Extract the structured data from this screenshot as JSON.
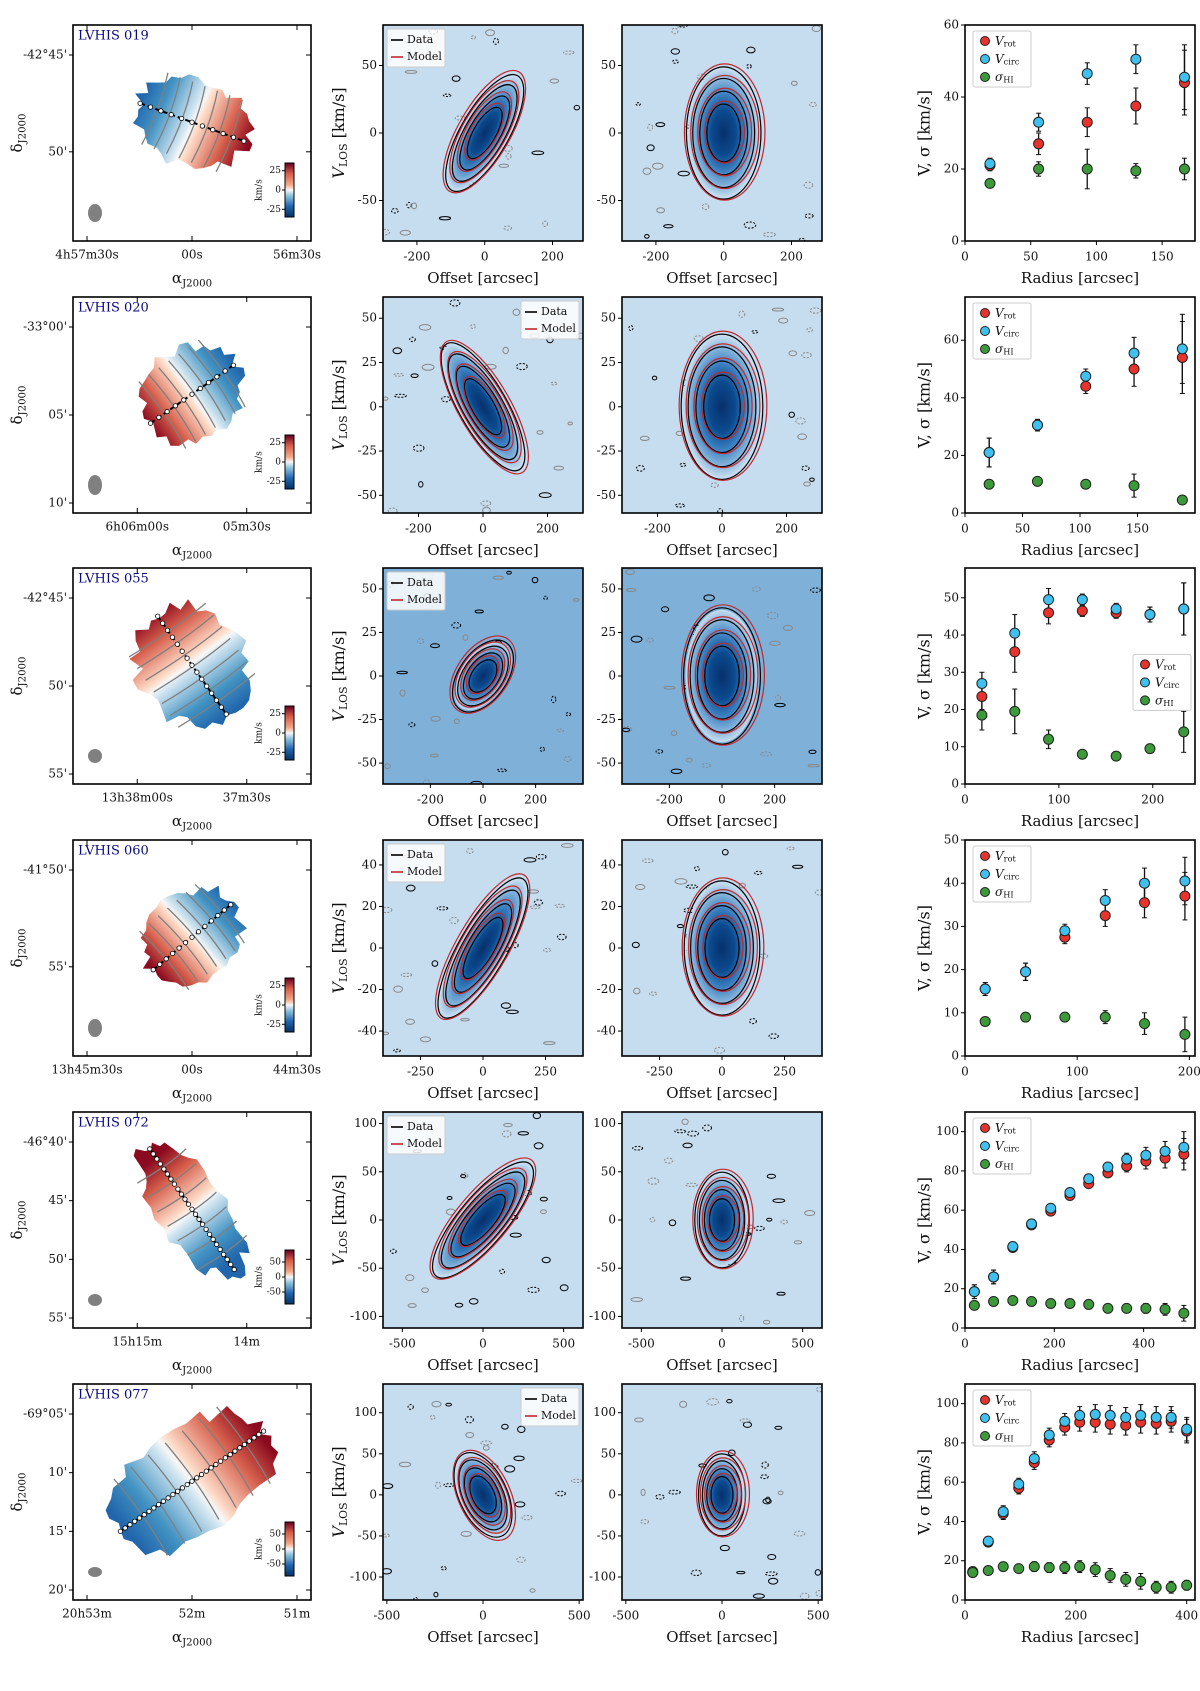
{
  "figure": {
    "colors": {
      "vrot": "#e8322c",
      "vcirc": "#3fc0ee",
      "sigma": "#3c9a3a",
      "data_contour": "#000000",
      "model_contour": "#c0272d",
      "label_blue": "#0a0a80",
      "map_red": "#b2182b",
      "map_blue": "#2166ac",
      "pv_bg": "#c6dcef",
      "pv_core": "#08306b",
      "beam": "#808080"
    },
    "common": {
      "pv_ylabel": "V_LOS [km/s]",
      "pv_xlabel": "Offset [arcsec]",
      "rc_ylabel": "V, σ [km/s]",
      "rc_xlabel": "Radius [arcsec]",
      "map_xlabel": "α_J2000",
      "map_ylabel": "δ_J2000",
      "colorbar_unit": "km/s",
      "legend_pv": [
        "Data",
        "Model"
      ],
      "legend_rc": [
        "V_rot",
        "V_circ",
        "σ_HI"
      ]
    }
  },
  "chart_data": [
    {
      "type": "scatter",
      "galaxy": "LVHIS 019",
      "velocity_map": {
        "ra_ticks": [
          "4h57m30s",
          "00s",
          "56m30s"
        ],
        "dec_ticks": [
          "-42°45'",
          "50'"
        ],
        "colorbar_ticks": [
          "25",
          "0",
          "-25"
        ],
        "colorbar_range": [
          -35,
          35
        ]
      },
      "pv_major": {
        "xlim": [
          -300,
          290
        ],
        "ylim": [
          -80,
          80
        ],
        "xticks": [
          "-200",
          "0",
          "200"
        ],
        "yticks": [
          "-50",
          "0",
          "50"
        ],
        "legend": "top-left",
        "slope_deg": 60,
        "extent": [
          80,
          60
        ]
      },
      "pv_minor": {
        "xlim": [
          -300,
          290
        ],
        "ylim": [
          -80,
          80
        ],
        "xticks": [
          "-200",
          "0",
          "200"
        ],
        "yticks": [
          "-50",
          "0",
          "50"
        ],
        "extent": [
          90,
          50
        ]
      },
      "rotation_curve": {
        "xlim": [
          0,
          175
        ],
        "ylim": [
          0,
          60
        ],
        "xticks": [
          "0",
          "50",
          "100",
          "150"
        ],
        "yticks": [
          "0",
          "20",
          "40",
          "60"
        ],
        "legend": "top-left",
        "radius": [
          19,
          56,
          93,
          130,
          167
        ],
        "series": [
          {
            "name": "V_rot",
            "values": [
              21,
              27,
              33,
              37.5,
              44
            ],
            "err": [
              1.5,
              3,
              4,
              5,
              9
            ]
          },
          {
            "name": "V_circ",
            "values": [
              21.5,
              33,
              46.5,
              50.5,
              45.5
            ],
            "err": [
              1.5,
              2.5,
              3,
              4,
              9
            ]
          },
          {
            "name": "σ_HI",
            "values": [
              16,
              20,
              20,
              19.5,
              20
            ],
            "err": [
              0.5,
              2,
              5.5,
              2,
              3
            ]
          }
        ]
      }
    },
    {
      "type": "scatter",
      "galaxy": "LVHIS 020",
      "velocity_map": {
        "ra_ticks": [
          "6h06m00s",
          "05m30s"
        ],
        "dec_ticks": [
          "-33°00'",
          "05'",
          "10'"
        ],
        "colorbar_ticks": [
          "25",
          "0",
          "-25"
        ],
        "colorbar_range": [
          -35,
          35
        ]
      },
      "pv_major": {
        "xlim": [
          -310,
          310
        ],
        "ylim": [
          -60,
          62
        ],
        "xticks": [
          "-200",
          "0",
          "200"
        ],
        "yticks": [
          "-50",
          "-25",
          "0",
          "25",
          "50"
        ],
        "legend": "top-right",
        "slope_deg": -60,
        "extent": [
          100,
          50
        ]
      },
      "pv_minor": {
        "xlim": [
          -310,
          310
        ],
        "ylim": [
          -60,
          62
        ],
        "xticks": [
          "-200",
          "0",
          "200"
        ],
        "yticks": [
          "-50",
          "-25",
          "0",
          "25",
          "50"
        ],
        "extent": [
          130,
          42
        ]
      },
      "rotation_curve": {
        "xlim": [
          0,
          200
        ],
        "ylim": [
          0,
          75
        ],
        "xticks": [
          "0",
          "50",
          "100",
          "150"
        ],
        "yticks": [
          "0",
          "20",
          "40",
          "60"
        ],
        "legend": "top-left",
        "radius": [
          21,
          63,
          105,
          147,
          189
        ],
        "series": [
          {
            "name": "V_rot",
            "values": [
              21,
              30.5,
              44,
              50,
              54
            ],
            "err": [
              5,
              2,
              2.5,
              6,
              12.5
            ]
          },
          {
            "name": "V_circ",
            "values": [
              21,
              30.5,
              47.5,
              55.5,
              57
            ],
            "err": [
              5,
              2,
              2.5,
              5.5,
              12
            ]
          },
          {
            "name": "σ_HI",
            "values": [
              10,
              11,
              10,
              9.5,
              4.5
            ],
            "err": [
              0.5,
              0.5,
              0.5,
              4,
              0.5
            ]
          }
        ]
      }
    },
    {
      "type": "scatter",
      "galaxy": "LVHIS 055",
      "velocity_map": {
        "ra_ticks": [
          "13h38m00s",
          "37m30s"
        ],
        "dec_ticks": [
          "-42°45'",
          "50'",
          "55'"
        ],
        "colorbar_ticks": [
          "25",
          "0",
          "-25"
        ],
        "colorbar_range": [
          -35,
          35
        ]
      },
      "pv_major": {
        "xlim": [
          -380,
          380
        ],
        "ylim": [
          -62,
          62
        ],
        "xticks": [
          "-200",
          "0",
          "200"
        ],
        "yticks": [
          "-50",
          "-25",
          "0",
          "25",
          "50"
        ],
        "legend": "top-left",
        "slope_deg": 55,
        "extent": [
          130,
          22
        ]
      },
      "pv_minor": {
        "xlim": [
          -380,
          380
        ],
        "ylim": [
          -62,
          62
        ],
        "xticks": [
          "-200",
          "0",
          "200"
        ],
        "yticks": [
          "-50",
          "-25",
          "0",
          "25",
          "50"
        ],
        "extent": [
          110,
          40
        ]
      },
      "rotation_curve": {
        "xlim": [
          0,
          245
        ],
        "ylim": [
          0,
          58
        ],
        "xticks": [
          "0",
          "100",
          "200"
        ],
        "yticks": [
          "0",
          "10",
          "20",
          "30",
          "40",
          "50"
        ],
        "legend": "center-right",
        "radius": [
          18,
          53,
          89,
          125,
          161,
          197,
          233
        ],
        "series": [
          {
            "name": "V_rot",
            "values": [
              23.5,
              35.5,
              46,
              46.5,
              46,
              45.5,
              47
            ],
            "err": [
              3.5,
              5.5,
              3,
              1.5,
              1.5,
              2,
              7
            ]
          },
          {
            "name": "V_circ",
            "values": [
              27,
              40.5,
              49.5,
              49.5,
              47,
              45.5,
              47
            ],
            "err": [
              3,
              5,
              3,
              1.5,
              1.5,
              2,
              7
            ]
          },
          {
            "name": "σ_HI",
            "values": [
              18.5,
              19.5,
              12,
              8,
              7.5,
              9.5,
              14
            ],
            "err": [
              4,
              6,
              2.5,
              1,
              0.5,
              1,
              5.5
            ]
          }
        ]
      }
    },
    {
      "type": "scatter",
      "galaxy": "LVHIS 060",
      "velocity_map": {
        "ra_ticks": [
          "13h45m30s",
          "00s",
          "44m30s"
        ],
        "dec_ticks": [
          "-41°50'",
          "55'"
        ],
        "colorbar_ticks": [
          "25",
          "0",
          "-25"
        ],
        "colorbar_range": [
          -35,
          35
        ]
      },
      "pv_major": {
        "xlim": [
          -400,
          400
        ],
        "ylim": [
          -52,
          52
        ],
        "xticks": [
          "-250",
          "0",
          "250"
        ],
        "yticks": [
          "-40",
          "-20",
          "0",
          "20",
          "40"
        ],
        "legend": "top-left",
        "slope_deg": 60,
        "extent": [
          180,
          45
        ]
      },
      "pv_minor": {
        "xlim": [
          -400,
          400
        ],
        "ylim": [
          -52,
          52
        ],
        "xticks": [
          "-250",
          "0",
          "250"
        ],
        "yticks": [
          "-40",
          "-20",
          "0",
          "20",
          "40"
        ],
        "extent": [
          120,
          33
        ]
      },
      "rotation_curve": {
        "xlim": [
          0,
          205
        ],
        "ylim": [
          0,
          50
        ],
        "xticks": [
          "0",
          "100",
          "200"
        ],
        "yticks": [
          "0",
          "10",
          "20",
          "30",
          "40",
          "50"
        ],
        "legend": "top-left",
        "radius": [
          18,
          54,
          89,
          125,
          160,
          196
        ],
        "series": [
          {
            "name": "V_rot",
            "values": [
              15.5,
              19.5,
              27.5,
              32.5,
              35.5,
              37
            ],
            "err": [
              1.5,
              2,
              1.5,
              2.5,
              3.5,
              5.5
            ]
          },
          {
            "name": "V_circ",
            "values": [
              15.5,
              19.5,
              29,
              36,
              40,
              40.5
            ],
            "err": [
              1.5,
              2,
              1.5,
              2.5,
              3.5,
              5.5
            ]
          },
          {
            "name": "σ_HI",
            "values": [
              8,
              9,
              9,
              9,
              7.5,
              5
            ],
            "err": [
              1,
              1,
              0.5,
              1.5,
              2.5,
              4
            ]
          }
        ]
      }
    },
    {
      "type": "scatter",
      "galaxy": "LVHIS 072",
      "velocity_map": {
        "ra_ticks": [
          "15h15m",
          "14m"
        ],
        "dec_ticks": [
          "-46°40'",
          "45'",
          "50'",
          "55'"
        ],
        "colorbar_ticks": [
          "50",
          "0",
          "-50"
        ],
        "colorbar_range": [
          -90,
          90
        ]
      },
      "pv_major": {
        "xlim": [
          -620,
          620
        ],
        "ylim": [
          -112,
          112
        ],
        "xticks": [
          "-500",
          "0",
          "500"
        ],
        "yticks": [
          "-100",
          "-50",
          "0",
          "50",
          "100"
        ],
        "legend": "top-left",
        "slope_deg": 50,
        "extent": [
          560,
          30
        ]
      },
      "pv_minor": {
        "xlim": [
          -620,
          620
        ],
        "ylim": [
          -112,
          112
        ],
        "xticks": [
          "-500",
          "0",
          "500"
        ],
        "yticks": [
          "-100",
          "-50",
          "0",
          "50",
          "100"
        ],
        "extent": [
          130,
          50
        ]
      },
      "rotation_curve": {
        "xlim": [
          0,
          515
        ],
        "ylim": [
          0,
          110
        ],
        "xticks": [
          "0",
          "200",
          "400"
        ],
        "yticks": [
          "0",
          "20",
          "40",
          "60",
          "80",
          "100"
        ],
        "legend": "top-left",
        "radius": [
          21,
          64,
          107,
          149,
          192,
          235,
          277,
          320,
          362,
          405,
          448,
          490
        ],
        "series": [
          {
            "name": "V_rot",
            "values": [
              18.5,
              26,
              41,
              52.5,
              59.5,
              67.5,
              73.5,
              79,
              82.5,
              85,
              86.5,
              88.5
            ],
            "err": [
              3.5,
              3.5,
              2,
              2,
              2,
              2,
              2,
              2,
              3,
              4,
              5,
              8
            ]
          },
          {
            "name": "V_circ",
            "values": [
              18.5,
              26,
              41.5,
              53,
              61,
              69,
              76,
              82,
              86,
              88,
              90,
              92
            ],
            "err": [
              3.5,
              3.5,
              2,
              2,
              2,
              2,
              2,
              2,
              3,
              4,
              5,
              8
            ]
          },
          {
            "name": "σ_HI",
            "values": [
              11.5,
              13.5,
              14,
              13.5,
              12.5,
              12.5,
              12,
              10,
              10,
              10,
              9.5,
              7.5
            ],
            "err": [
              2,
              1.5,
              1.5,
              1.5,
              1.5,
              1.5,
              1.5,
              1.5,
              2,
              2.5,
              3,
              4
            ]
          }
        ]
      }
    },
    {
      "type": "scatter",
      "galaxy": "LVHIS 077",
      "velocity_map": {
        "ra_ticks": [
          "20h53m",
          "52m",
          "51m"
        ],
        "dec_ticks": [
          "-69°05'",
          "10'",
          "15'",
          "20'"
        ],
        "colorbar_ticks": [
          "50",
          "0",
          "-50"
        ],
        "colorbar_range": [
          -90,
          90
        ]
      },
      "pv_major": {
        "xlim": [
          -520,
          520
        ],
        "ylim": [
          -128,
          135
        ],
        "xticks": [
          "-500",
          "0",
          "500"
        ],
        "yticks": [
          "-100",
          "-50",
          "0",
          "50",
          "100"
        ],
        "legend": "top-right",
        "slope_deg": -65,
        "extent": [
          260,
          35
        ]
      },
      "pv_minor": {
        "xlim": [
          -520,
          520
        ],
        "ylim": [
          -128,
          135
        ],
        "xticks": [
          "-500",
          "0",
          "500"
        ],
        "yticks": [
          "-100",
          "-50",
          "0",
          "50",
          "100"
        ],
        "extent": [
          170,
          50
        ]
      },
      "rotation_curve": {
        "xlim": [
          0,
          415
        ],
        "ylim": [
          0,
          110
        ],
        "xticks": [
          "0",
          "200",
          "400"
        ],
        "yticks": [
          "0",
          "20",
          "40",
          "60",
          "80",
          "100"
        ],
        "legend": "top-left",
        "radius": [
          14,
          42,
          69,
          97,
          125,
          152,
          180,
          207,
          235,
          262,
          290,
          317,
          345,
          372,
          400
        ],
        "series": [
          {
            "name": "V_rot",
            "values": [
              14,
              29.5,
              44,
              57,
              70,
              81.5,
              88,
              90.5,
              90.5,
              89.5,
              89,
              90.5,
              90,
              91,
              86
            ],
            "err": [
              1.5,
              2,
              3,
              3,
              3.5,
              3.5,
              4,
              4.5,
              5,
              5,
              5,
              5.5,
              5.5,
              5.5,
              6
            ]
          },
          {
            "name": "V_circ",
            "values": [
              14.5,
              30,
              45,
              59,
              72,
              84,
              91,
              94,
              94.5,
              94,
              93,
              94,
              93,
              93,
              87
            ],
            "err": [
              1.5,
              2,
              3,
              3,
              3.5,
              3.5,
              4,
              4.5,
              5,
              5,
              5,
              5.5,
              5.5,
              5.5,
              6
            ]
          },
          {
            "name": "σ_HI",
            "values": [
              14,
              15,
              17,
              16,
              17,
              16.5,
              16.5,
              17,
              15.5,
              12.5,
              10.5,
              9.5,
              6.5,
              6.5,
              7.5
            ],
            "err": [
              1.5,
              1.5,
              2,
              1.5,
              2.5,
              2.5,
              3,
              3,
              3.5,
              3.5,
              3.5,
              4,
              3,
              3,
              2.5
            ]
          }
        ]
      }
    }
  ]
}
